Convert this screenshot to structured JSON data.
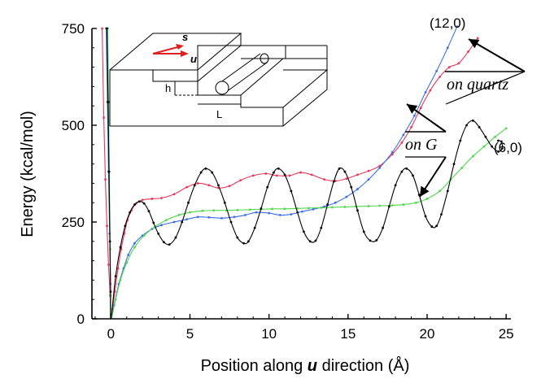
{
  "chart_data": {
    "type": "line",
    "title": "",
    "xlabel": {
      "prefix": "Position along ",
      "emph": "u",
      "suffix": " direction (Å)"
    },
    "ylabel": "Energy (kcal/mol)",
    "xlim": [
      -1.2,
      25.3
    ],
    "ylim": [
      0,
      750
    ],
    "xticks": [
      0,
      5,
      10,
      15,
      20,
      25
    ],
    "yticks": [
      0,
      250,
      500,
      750
    ],
    "grid": false,
    "legend": "none",
    "series": [
      {
        "color": "#e8385a",
        "markers": true,
        "points": [
          [
            -0.55,
            750
          ],
          [
            -0.45,
            520
          ],
          [
            -0.35,
            360
          ],
          [
            -0.25,
            240
          ],
          [
            -0.15,
            140
          ],
          [
            -0.05,
            60
          ],
          [
            0,
            0
          ],
          [
            0.1,
            25
          ],
          [
            0.25,
            70
          ],
          [
            0.45,
            130
          ],
          [
            0.65,
            180
          ],
          [
            0.85,
            220
          ],
          [
            1.05,
            255
          ],
          [
            1.3,
            280
          ],
          [
            1.6,
            298
          ],
          [
            2,
            307
          ],
          [
            2.6,
            310
          ],
          [
            3.2,
            312
          ],
          [
            4,
            322
          ],
          [
            4.8,
            340
          ],
          [
            5.5,
            350
          ],
          [
            6.2,
            345
          ],
          [
            6.8,
            338
          ],
          [
            7.5,
            343
          ],
          [
            8.2,
            358
          ],
          [
            9,
            370
          ],
          [
            9.8,
            375
          ],
          [
            10.5,
            370
          ],
          [
            11.3,
            370
          ],
          [
            12,
            378
          ],
          [
            12.7,
            372
          ],
          [
            13.5,
            360
          ],
          [
            14.2,
            356
          ],
          [
            14.9,
            362
          ],
          [
            15.6,
            372
          ],
          [
            16.3,
            382
          ],
          [
            17,
            395
          ],
          [
            17.8,
            425
          ],
          [
            18.4,
            455
          ],
          [
            19,
            495
          ],
          [
            19.6,
            545
          ],
          [
            20.2,
            590
          ],
          [
            20.8,
            625
          ],
          [
            21.4,
            650
          ],
          [
            22,
            660
          ],
          [
            22.6,
            690
          ],
          [
            23.2,
            725
          ]
        ]
      },
      {
        "color": "#3a6ee8",
        "markers": true,
        "points": [
          [
            -0.3,
            750
          ],
          [
            -0.22,
            560
          ],
          [
            -0.15,
            380
          ],
          [
            -0.08,
            220
          ],
          [
            -0.03,
            90
          ],
          [
            0,
            0
          ],
          [
            0.2,
            35
          ],
          [
            0.5,
            90
          ],
          [
            0.8,
            130
          ],
          [
            1.1,
            165
          ],
          [
            1.5,
            195
          ],
          [
            2,
            215
          ],
          [
            2.6,
            232
          ],
          [
            3.2,
            242
          ],
          [
            4,
            250
          ],
          [
            4.8,
            257
          ],
          [
            5.5,
            263
          ],
          [
            6.2,
            262
          ],
          [
            7,
            260
          ],
          [
            7.8,
            263
          ],
          [
            8.5,
            268
          ],
          [
            9.2,
            275
          ],
          [
            10,
            273
          ],
          [
            10.7,
            268
          ],
          [
            11.4,
            270
          ],
          [
            12.1,
            277
          ],
          [
            12.8,
            283
          ],
          [
            13.5,
            290
          ],
          [
            14.2,
            300
          ],
          [
            14.9,
            315
          ],
          [
            15.6,
            335
          ],
          [
            16.3,
            360
          ],
          [
            17,
            390
          ],
          [
            17.8,
            430
          ],
          [
            18.5,
            475
          ],
          [
            19.2,
            525
          ],
          [
            19.9,
            585
          ],
          [
            20.6,
            640
          ],
          [
            21.3,
            700
          ],
          [
            21.9,
            755
          ]
        ]
      },
      {
        "color": "#4fd84a",
        "markers": true,
        "points": [
          [
            -0.2,
            750
          ],
          [
            -0.15,
            560
          ],
          [
            -0.1,
            380
          ],
          [
            -0.05,
            180
          ],
          [
            -0.02,
            60
          ],
          [
            0,
            0
          ],
          [
            0.3,
            50
          ],
          [
            0.6,
            100
          ],
          [
            1,
            145
          ],
          [
            1.5,
            185
          ],
          [
            2.1,
            215
          ],
          [
            2.8,
            238
          ],
          [
            3.5,
            255
          ],
          [
            4.3,
            268
          ],
          [
            5,
            275
          ],
          [
            5.8,
            279
          ],
          [
            6.5,
            280
          ],
          [
            7.3,
            280
          ],
          [
            8,
            281
          ],
          [
            8.8,
            282
          ],
          [
            9.5,
            283
          ],
          [
            10.2,
            284
          ],
          [
            11,
            284
          ],
          [
            11.8,
            285
          ],
          [
            12.5,
            286
          ],
          [
            13.3,
            287
          ],
          [
            14,
            288
          ],
          [
            14.8,
            289
          ],
          [
            15.5,
            290
          ],
          [
            16.3,
            291
          ],
          [
            17,
            292
          ],
          [
            17.8,
            293
          ],
          [
            18.5,
            295
          ],
          [
            19.3,
            300
          ],
          [
            20,
            310
          ],
          [
            20.8,
            330
          ],
          [
            21.5,
            360
          ],
          [
            22.2,
            390
          ],
          [
            22.9,
            420
          ],
          [
            23.6,
            445
          ],
          [
            24.3,
            470
          ],
          [
            25,
            492
          ]
        ]
      },
      {
        "color": "#000000",
        "markers": true,
        "points": [
          [
            -0.25,
            750
          ],
          [
            -0.18,
            560
          ],
          [
            -0.12,
            380
          ],
          [
            -0.06,
            200
          ],
          [
            -0.02,
            70
          ],
          [
            0,
            0
          ],
          [
            0.3,
            110
          ],
          [
            0.6,
            185
          ],
          [
            0.9,
            240
          ],
          [
            1.2,
            275
          ],
          [
            1.5,
            295
          ],
          [
            1.8,
            303
          ],
          [
            2.1,
            298
          ],
          [
            2.4,
            278
          ],
          [
            2.7,
            248
          ],
          [
            3,
            220
          ],
          [
            3.35,
            198
          ],
          [
            3.7,
            192
          ],
          [
            4.1,
            210
          ],
          [
            4.5,
            250
          ],
          [
            4.9,
            300
          ],
          [
            5.3,
            345
          ],
          [
            5.7,
            378
          ],
          [
            6,
            388
          ],
          [
            6.4,
            378
          ],
          [
            6.8,
            345
          ],
          [
            7.2,
            300
          ],
          [
            7.6,
            250
          ],
          [
            8,
            210
          ],
          [
            8.4,
            195
          ],
          [
            8.7,
            200
          ],
          [
            9.1,
            235
          ],
          [
            9.5,
            285
          ],
          [
            9.9,
            340
          ],
          [
            10.3,
            378
          ],
          [
            10.6,
            388
          ],
          [
            11,
            372
          ],
          [
            11.4,
            330
          ],
          [
            11.8,
            275
          ],
          [
            12.2,
            225
          ],
          [
            12.6,
            200
          ],
          [
            12.95,
            202
          ],
          [
            13.3,
            235
          ],
          [
            13.7,
            295
          ],
          [
            14.1,
            355
          ],
          [
            14.45,
            388
          ],
          [
            14.8,
            380
          ],
          [
            15.2,
            340
          ],
          [
            15.6,
            280
          ],
          [
            16,
            225
          ],
          [
            16.4,
            202
          ],
          [
            16.8,
            203
          ],
          [
            17.2,
            235
          ],
          [
            17.6,
            290
          ],
          [
            18,
            345
          ],
          [
            18.4,
            380
          ],
          [
            18.7,
            388
          ],
          [
            19.1,
            370
          ],
          [
            19.5,
            320
          ],
          [
            19.9,
            265
          ],
          [
            20.3,
            238
          ],
          [
            20.6,
            240
          ],
          [
            20.9,
            270
          ],
          [
            21.3,
            330
          ],
          [
            21.7,
            400
          ],
          [
            22.1,
            460
          ],
          [
            22.5,
            500
          ],
          [
            22.9,
            512
          ],
          [
            23.3,
            495
          ],
          [
            23.7,
            470
          ],
          [
            24.1,
            445
          ],
          [
            24.5,
            432
          ],
          [
            24.75,
            440
          ],
          [
            24.7,
            458
          ],
          [
            24.5,
            460
          ]
        ]
      }
    ],
    "annotations": [
      {
        "text": "(12,0)",
        "style": "normal"
      },
      {
        "text": "(6,0)",
        "style": "normal"
      },
      {
        "text": "on quartz",
        "style": "italic"
      },
      {
        "text": "on G",
        "style": "italic"
      }
    ],
    "inset": {
      "labels": [
        "s",
        "u",
        "h",
        "L"
      ]
    }
  }
}
